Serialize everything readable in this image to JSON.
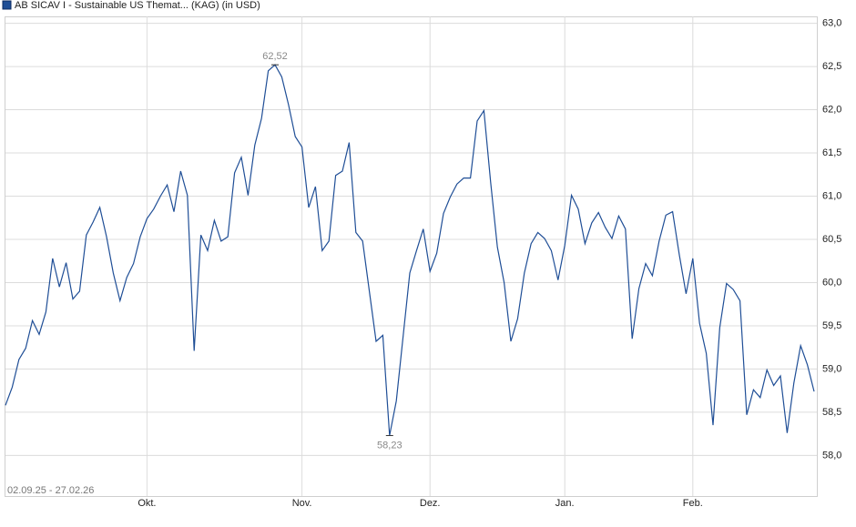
{
  "chart_data": {
    "type": "line",
    "legend_title": "AB SICAV I - Sustainable US Themat... (KAG) (in USD)",
    "date_range": "02.09.25 - 27.02.26",
    "categories": [
      null,
      null,
      null,
      null,
      null,
      null,
      null,
      null,
      null,
      null,
      null,
      null,
      null,
      null,
      null,
      null,
      null,
      null,
      null,
      null,
      null,
      "Okt.",
      null,
      null,
      null,
      null,
      null,
      null,
      null,
      null,
      null,
      null,
      null,
      null,
      null,
      null,
      null,
      null,
      null,
      null,
      null,
      null,
      null,
      null,
      "Nov.",
      null,
      null,
      null,
      null,
      null,
      null,
      null,
      null,
      null,
      null,
      null,
      null,
      null,
      null,
      null,
      null,
      null,
      null,
      "Dez.",
      null,
      null,
      null,
      null,
      null,
      null,
      null,
      null,
      null,
      null,
      null,
      null,
      null,
      null,
      null,
      null,
      null,
      null,
      null,
      "Jan.",
      null,
      null,
      null,
      null,
      null,
      null,
      null,
      null,
      null,
      null,
      null,
      null,
      null,
      null,
      null,
      null,
      null,
      null,
      "Feb.",
      null,
      null,
      null,
      null,
      null,
      null,
      null,
      null,
      null,
      null,
      null,
      null,
      null,
      null,
      null,
      null,
      null,
      null
    ],
    "series": [
      {
        "name": "AB SICAV I - Sustainable US Themat... (KAG) (in USD)",
        "color": "#1f4e96",
        "values": [
          58.58,
          58.79,
          59.11,
          59.24,
          59.56,
          59.4,
          59.66,
          60.28,
          59.95,
          60.23,
          59.81,
          59.9,
          60.55,
          60.7,
          60.87,
          60.53,
          60.11,
          59.79,
          60.06,
          60.22,
          60.53,
          60.74,
          60.85,
          61.0,
          61.13,
          60.82,
          61.29,
          61.01,
          59.21,
          60.55,
          60.37,
          60.72,
          60.48,
          60.53,
          61.27,
          61.45,
          61.01,
          61.59,
          61.9,
          62.45,
          62.52,
          62.38,
          62.06,
          61.69,
          61.57,
          60.87,
          61.11,
          60.37,
          60.48,
          61.24,
          61.29,
          61.62,
          60.58,
          60.48,
          59.9,
          59.32,
          59.39,
          58.23,
          58.63,
          59.37,
          60.11,
          60.37,
          60.62,
          60.13,
          60.34,
          60.8,
          60.99,
          61.14,
          61.21,
          61.21,
          61.87,
          61.99,
          61.16,
          60.41,
          60.0,
          59.32,
          59.58,
          60.11,
          60.45,
          60.58,
          60.51,
          60.37,
          60.03,
          60.43,
          61.01,
          60.85,
          60.45,
          60.69,
          60.81,
          60.64,
          60.51,
          60.77,
          60.62,
          59.35,
          59.93,
          60.22,
          60.08,
          60.48,
          60.78,
          60.82,
          60.32,
          59.87,
          60.28,
          59.53,
          59.18,
          58.35,
          59.48,
          59.99,
          59.92,
          59.79,
          58.47,
          58.76,
          58.67,
          58.99,
          58.81,
          58.92,
          58.26,
          58.84,
          59.27,
          59.05,
          58.74
        ]
      }
    ],
    "annotations": [
      {
        "label": "62,52",
        "value": 62.52
      },
      {
        "label": "58,23",
        "value": 58.23
      }
    ],
    "ylim": [
      57.53,
      63.08
    ],
    "yticks": [
      {
        "value": 58.0,
        "label": "58,0"
      },
      {
        "value": 58.5,
        "label": "58,5"
      },
      {
        "value": 59.0,
        "label": "59,0"
      },
      {
        "value": 59.5,
        "label": "59,5"
      },
      {
        "value": 60.0,
        "label": "60,0"
      },
      {
        "value": 60.5,
        "label": "60,5"
      },
      {
        "value": 61.0,
        "label": "61,0"
      },
      {
        "value": 61.5,
        "label": "61,5"
      },
      {
        "value": 62.0,
        "label": "62,0"
      },
      {
        "value": 62.5,
        "label": "62,5"
      },
      {
        "value": 63.0,
        "label": "63,0"
      }
    ],
    "grid": true
  }
}
